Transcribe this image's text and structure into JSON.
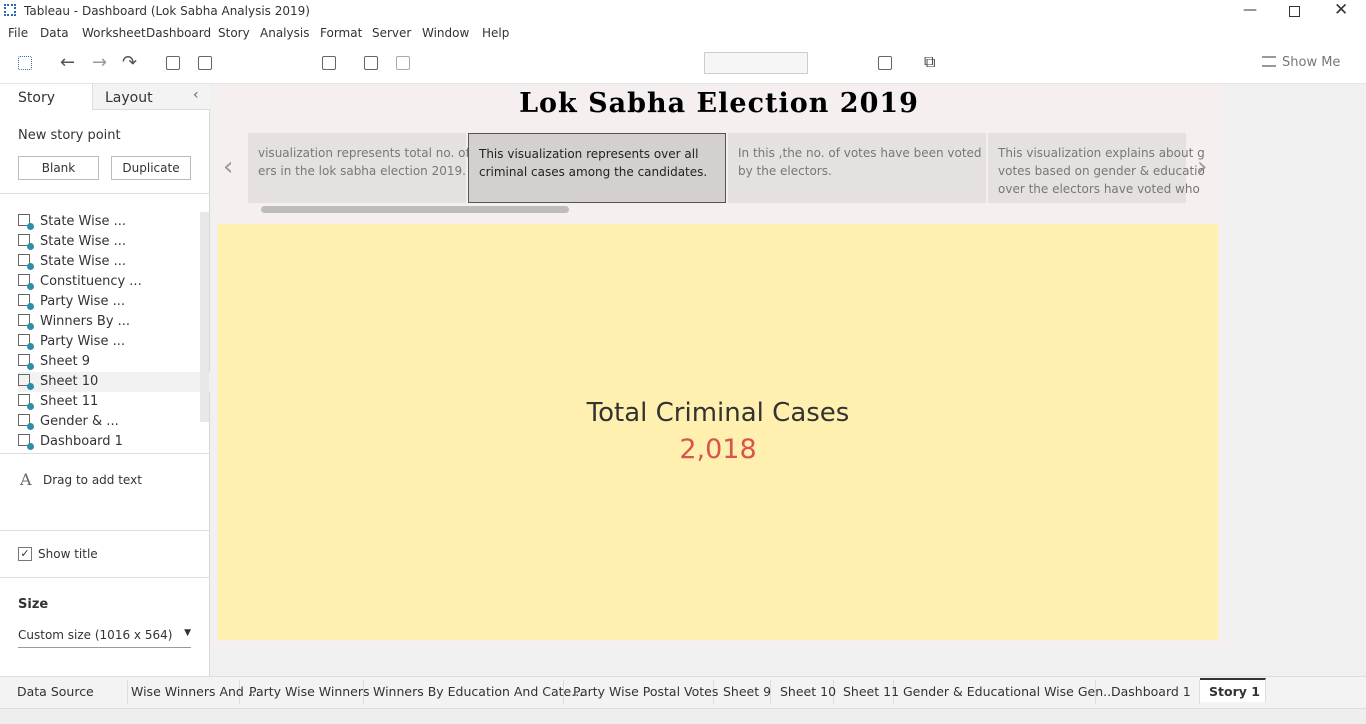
{
  "window": {
    "title": "Tableau - Dashboard (Lok Sabha Analysis 2019)"
  },
  "menu": [
    "File",
    "Data",
    "Worksheet",
    "Dashboard",
    "Story",
    "Analysis",
    "Format",
    "Server",
    "Window",
    "Help"
  ],
  "toolbar": {
    "show_me": "Show Me"
  },
  "sidebar": {
    "tabs": [
      "Story",
      "Layout"
    ],
    "new_story_point": "New story point",
    "buttons": [
      "Blank",
      "Duplicate"
    ],
    "sheets": [
      "State Wise ...",
      "State Wise ...",
      "State Wise ...",
      "Constituency ...",
      "Party Wise ...",
      "Winners By ...",
      "Party Wise ...",
      "Sheet 9",
      "Sheet 10",
      "Sheet 11",
      "Gender & ...",
      "Dashboard 1"
    ],
    "drag_text": "Drag to add text",
    "show_title": "Show title",
    "size_label": "Size",
    "size_value": "Custom size (1016 x 564)"
  },
  "story": {
    "title": "Lok Sabha Election 2019",
    "points": [
      {
        "lines": [
          "visualization represents total no. of",
          "ers in the lok sabha election 2019."
        ]
      },
      {
        "lines": [
          "This visualization represents over all",
          "criminal cases among the candidates."
        ]
      },
      {
        "lines": [
          "In this ,the no. of votes have been voted",
          "by the electors."
        ]
      },
      {
        "lines": [
          "This visualization explains about g",
          "votes based on gender & educatio",
          "over the electors have voted who"
        ]
      }
    ],
    "kpi_label": "Total Criminal Cases",
    "kpi_value": "2,018"
  },
  "tabs": [
    "Data Source",
    "Wise Winners And ...",
    "Party Wise Winners",
    "Winners By Education And Cate...",
    "Party Wise Postal Votes",
    "Sheet 9",
    "Sheet 10",
    "Sheet 11",
    "Gender & Educational Wise Gen...",
    "Dashboard 1",
    "Story 1"
  ]
}
